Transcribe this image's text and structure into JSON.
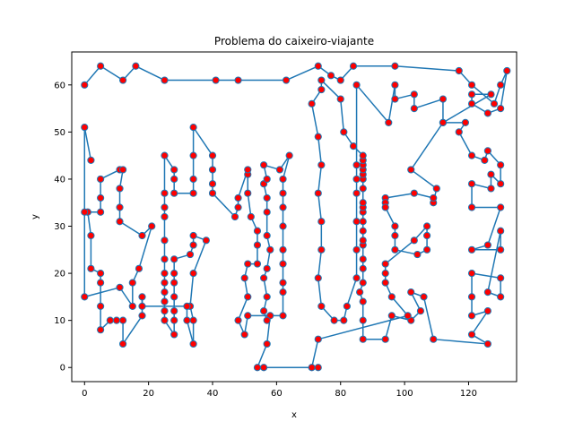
{
  "chart_data": {
    "type": "line",
    "title": "Problema do caixeiro-viajante",
    "xlabel": "x",
    "ylabel": "y",
    "xlim": [
      -4,
      135
    ],
    "ylim": [
      -3,
      67
    ],
    "x_ticks": [
      0,
      20,
      40,
      60,
      80,
      100,
      120
    ],
    "y_ticks": [
      0,
      10,
      20,
      30,
      40,
      50,
      60
    ],
    "grid": false,
    "legend": "none",
    "line_color": "#1f77b4",
    "marker_face_color": "#ff0000",
    "marker_edge_color": "#1f77b4",
    "series": [
      {
        "points": [
          [
            0,
            60
          ],
          [
            5,
            64
          ],
          [
            12,
            61
          ],
          [
            16,
            64
          ],
          [
            25,
            61
          ],
          [
            41,
            61
          ],
          [
            48,
            61
          ],
          [
            63,
            61
          ],
          [
            73,
            64
          ],
          [
            77,
            62
          ],
          [
            80,
            61
          ],
          [
            84,
            64
          ],
          [
            97,
            64
          ],
          [
            117,
            63
          ],
          [
            121,
            60
          ],
          [
            128,
            56
          ],
          [
            130,
            60
          ],
          [
            132,
            63
          ],
          [
            130,
            55
          ],
          [
            126,
            54
          ],
          [
            121,
            56
          ],
          [
            121,
            58
          ],
          [
            127,
            58
          ],
          [
            112,
            52
          ],
          [
            119,
            52
          ],
          [
            117,
            50
          ],
          [
            121,
            45
          ],
          [
            125,
            44
          ],
          [
            126,
            46
          ],
          [
            130,
            43
          ],
          [
            130,
            39
          ],
          [
            127,
            41
          ],
          [
            127,
            38
          ],
          [
            121,
            39
          ],
          [
            121,
            34
          ],
          [
            130,
            34
          ],
          [
            126,
            26
          ],
          [
            121,
            25
          ],
          [
            130,
            25
          ],
          [
            130,
            29
          ],
          [
            126,
            16
          ],
          [
            130,
            15
          ],
          [
            130,
            19
          ],
          [
            121,
            20
          ],
          [
            121,
            15
          ],
          [
            121,
            11
          ],
          [
            126,
            12
          ],
          [
            121,
            7
          ],
          [
            126,
            5
          ],
          [
            109,
            6
          ],
          [
            106,
            15
          ],
          [
            102,
            16
          ],
          [
            105,
            12
          ],
          [
            102,
            10
          ],
          [
            96,
            11
          ],
          [
            94,
            6
          ],
          [
            87,
            6
          ],
          [
            87,
            10
          ],
          [
            87,
            14
          ],
          [
            86,
            16
          ],
          [
            87,
            18
          ],
          [
            87,
            21
          ],
          [
            87,
            23
          ],
          [
            87,
            26
          ],
          [
            87,
            27
          ],
          [
            87,
            29
          ],
          [
            87,
            31
          ],
          [
            87,
            33
          ],
          [
            87,
            34
          ],
          [
            87,
            35
          ],
          [
            87,
            38
          ],
          [
            87,
            40
          ],
          [
            87,
            41
          ],
          [
            87,
            42
          ],
          [
            87,
            43
          ],
          [
            87,
            44
          ],
          [
            87,
            45
          ],
          [
            84,
            47
          ],
          [
            81,
            50
          ],
          [
            80,
            57
          ],
          [
            74,
            61
          ],
          [
            74,
            59
          ],
          [
            71,
            56
          ],
          [
            73,
            49
          ],
          [
            74,
            43
          ],
          [
            73,
            37
          ],
          [
            74,
            31
          ],
          [
            74,
            25
          ],
          [
            73,
            19
          ],
          [
            74,
            13
          ],
          [
            78,
            10
          ],
          [
            81,
            10
          ],
          [
            82,
            13
          ],
          [
            85,
            19
          ],
          [
            85,
            25
          ],
          [
            85,
            31
          ],
          [
            85,
            37
          ],
          [
            85,
            40
          ],
          [
            85,
            43
          ],
          [
            85,
            60
          ],
          [
            95,
            52
          ],
          [
            97,
            60
          ],
          [
            97,
            57
          ],
          [
            103,
            58
          ],
          [
            103,
            55
          ],
          [
            112,
            57
          ],
          [
            112,
            52
          ],
          [
            102,
            42
          ],
          [
            110,
            38
          ],
          [
            109,
            35
          ],
          [
            109,
            36
          ],
          [
            103,
            37
          ],
          [
            94,
            36
          ],
          [
            94,
            35
          ],
          [
            94,
            34
          ],
          [
            97,
            30
          ],
          [
            97,
            28
          ],
          [
            97,
            25
          ],
          [
            104,
            24
          ],
          [
            107,
            25
          ],
          [
            107,
            28
          ],
          [
            107,
            30
          ],
          [
            103,
            27
          ],
          [
            94,
            22
          ],
          [
            94,
            20
          ],
          [
            94,
            18
          ],
          [
            96,
            15
          ],
          [
            101,
            11
          ],
          [
            73,
            6
          ],
          [
            71,
            0
          ],
          [
            73,
            0
          ],
          [
            56,
            0
          ],
          [
            54,
            0
          ],
          [
            57,
            5
          ],
          [
            58,
            11
          ],
          [
            57,
            10
          ],
          [
            56,
            12
          ],
          [
            57,
            15
          ],
          [
            56,
            19
          ],
          [
            57,
            21
          ],
          [
            58,
            25
          ],
          [
            57,
            28
          ],
          [
            57,
            33
          ],
          [
            57,
            36
          ],
          [
            56,
            39
          ],
          [
            57,
            40
          ],
          [
            56,
            43
          ],
          [
            61,
            42
          ],
          [
            64,
            45
          ],
          [
            62,
            40
          ],
          [
            62,
            37
          ],
          [
            62,
            34
          ],
          [
            62,
            30
          ],
          [
            62,
            25
          ],
          [
            62,
            22
          ],
          [
            62,
            18
          ],
          [
            62,
            16
          ],
          [
            62,
            11
          ],
          [
            51,
            11
          ],
          [
            50,
            7
          ],
          [
            48,
            10
          ],
          [
            51,
            15
          ],
          [
            50,
            19
          ],
          [
            51,
            22
          ],
          [
            54,
            22
          ],
          [
            54,
            26
          ],
          [
            54,
            29
          ],
          [
            52,
            32
          ],
          [
            51,
            37
          ],
          [
            51,
            41
          ],
          [
            51,
            42
          ],
          [
            48,
            36
          ],
          [
            48,
            34
          ],
          [
            47,
            32
          ],
          [
            40,
            37
          ],
          [
            40,
            39
          ],
          [
            40,
            42
          ],
          [
            40,
            45
          ],
          [
            34,
            51
          ],
          [
            34,
            45
          ],
          [
            34,
            40
          ],
          [
            34,
            37
          ],
          [
            28,
            37
          ],
          [
            28,
            40
          ],
          [
            28,
            42
          ],
          [
            25,
            45
          ],
          [
            25,
            37
          ],
          [
            25,
            34
          ],
          [
            25,
            32
          ],
          [
            25,
            27
          ],
          [
            25,
            23
          ],
          [
            25,
            20
          ],
          [
            25,
            18
          ],
          [
            25,
            16
          ],
          [
            25,
            14
          ],
          [
            25,
            12
          ],
          [
            25,
            10
          ],
          [
            28,
            7
          ],
          [
            28,
            10
          ],
          [
            28,
            12
          ],
          [
            28,
            15
          ],
          [
            28,
            18
          ],
          [
            28,
            20
          ],
          [
            28,
            23
          ],
          [
            33,
            24
          ],
          [
            34,
            26
          ],
          [
            34,
            28
          ],
          [
            38,
            27
          ],
          [
            34,
            20
          ],
          [
            33,
            13
          ],
          [
            34,
            10
          ],
          [
            34,
            5
          ],
          [
            32,
            10
          ],
          [
            32,
            13
          ],
          [
            18,
            13
          ],
          [
            18,
            15
          ],
          [
            18,
            11
          ],
          [
            12,
            5
          ],
          [
            12,
            10
          ],
          [
            10,
            10
          ],
          [
            8,
            10
          ],
          [
            5,
            8
          ],
          [
            5,
            13
          ],
          [
            5,
            18
          ],
          [
            5,
            20
          ],
          [
            2,
            21
          ],
          [
            2,
            28
          ],
          [
            1,
            33
          ],
          [
            0,
            33
          ],
          [
            5,
            33
          ],
          [
            5,
            36
          ],
          [
            5,
            40
          ],
          [
            11,
            42
          ],
          [
            12,
            42
          ],
          [
            11,
            38
          ],
          [
            11,
            34
          ],
          [
            11,
            31
          ],
          [
            18,
            28
          ],
          [
            21,
            30
          ],
          [
            17,
            21
          ],
          [
            15,
            18
          ],
          [
            15,
            13
          ],
          [
            11,
            17
          ],
          [
            0,
            15
          ],
          [
            0,
            51
          ],
          [
            2,
            44
          ]
        ]
      }
    ]
  }
}
